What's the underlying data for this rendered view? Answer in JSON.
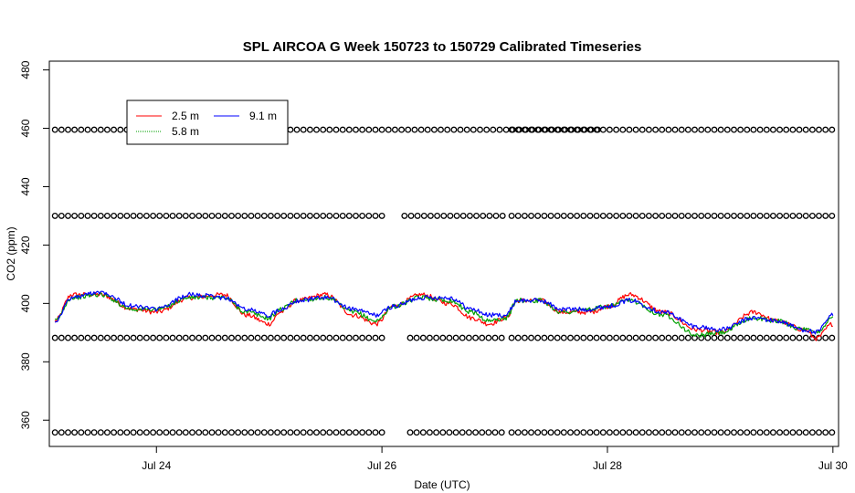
{
  "chart_data": {
    "type": "line",
    "title": "SPL AIRCOA G  Week 150723 to 150729  Calibrated Timeseries",
    "xlabel": "Date (UTC)",
    "ylabel": "CO2 (ppm)",
    "x_unit": "days",
    "xlim": [
      23.05,
      30.05
    ],
    "ylim": [
      351,
      483
    ],
    "x_ticks": [
      {
        "value": 24,
        "label": "Jul 24"
      },
      {
        "value": 26,
        "label": "Jul 26"
      },
      {
        "value": 28,
        "label": "Jul 28"
      },
      {
        "value": 30,
        "label": "Jul 30"
      }
    ],
    "y_ticks": [
      360,
      380,
      400,
      420,
      440,
      460,
      480
    ],
    "legend": {
      "placement": "top-left",
      "entries": [
        "2.5 m",
        "9.1 m",
        "5.8 m"
      ]
    },
    "colors": {
      "2.5 m": "#ff0000",
      "5.8 m": "#00a000",
      "9.1 m": "#0000ff",
      "cal": "#000000"
    },
    "series": [
      {
        "name": "2.5 m",
        "color": "#ff0000",
        "x": [
          23.1,
          23.25,
          23.5,
          23.8,
          24.0,
          24.3,
          24.6,
          24.8,
          25.0,
          25.1,
          25.25,
          25.5,
          25.75,
          25.95,
          26.1,
          26.35,
          26.6,
          26.8,
          26.95,
          27.1,
          27.2,
          27.4,
          27.6,
          27.85,
          28.0,
          28.2,
          28.5,
          28.8,
          29.0,
          29.3,
          29.5,
          29.75,
          29.85,
          30.0
        ],
        "y": [
          394,
          403,
          403,
          398,
          397,
          402,
          403,
          396,
          393,
          397,
          401,
          403,
          396,
          393,
          399,
          403,
          400,
          395,
          393,
          395,
          401,
          401,
          397,
          397,
          399,
          403,
          397,
          391,
          390,
          397,
          394,
          391,
          388,
          393
        ]
      },
      {
        "name": "5.8 m",
        "color": "#00a000",
        "x": [
          23.1,
          23.25,
          23.5,
          23.8,
          24.0,
          24.3,
          24.6,
          24.8,
          25.0,
          25.1,
          25.25,
          25.5,
          25.75,
          25.95,
          26.1,
          26.35,
          26.6,
          26.8,
          26.95,
          27.1,
          27.2,
          27.4,
          27.6,
          27.85,
          28.0,
          28.2,
          28.5,
          28.8,
          29.0,
          29.3,
          29.5,
          29.75,
          29.85,
          30.0
        ],
        "y": [
          394,
          402,
          403,
          398,
          398,
          402,
          402,
          397,
          395,
          398,
          401,
          402,
          397,
          394,
          399,
          402,
          401,
          397,
          394,
          395,
          401,
          401,
          397,
          398,
          399,
          401,
          396,
          389,
          390,
          395,
          394,
          391,
          390,
          395
        ]
      },
      {
        "name": "9.1 m",
        "color": "#0000ff",
        "x": [
          23.1,
          23.25,
          23.5,
          23.8,
          24.0,
          24.3,
          24.6,
          24.8,
          25.0,
          25.1,
          25.25,
          25.5,
          25.75,
          25.95,
          26.1,
          26.35,
          26.6,
          26.8,
          26.95,
          27.1,
          27.2,
          27.4,
          27.6,
          27.85,
          28.0,
          28.2,
          28.5,
          28.8,
          29.0,
          29.3,
          29.5,
          29.75,
          29.85,
          30.0
        ],
        "y": [
          394,
          402,
          404,
          399,
          398,
          403,
          402,
          398,
          396,
          398,
          401,
          402,
          398,
          396,
          399,
          402,
          402,
          398,
          396,
          396,
          401,
          401,
          398,
          398,
          399,
          401,
          397,
          392,
          391,
          395,
          394,
          391,
          390,
          396
        ]
      }
    ],
    "calibration_series": [
      {
        "level": 459.5,
        "segments": [
          [
            23.1,
            27.95
          ],
          [
            27.15,
            30.0
          ]
        ]
      },
      {
        "level": 430.0,
        "segments": [
          [
            23.1,
            26.05
          ],
          [
            26.2,
            27.1
          ],
          [
            27.15,
            30.0
          ]
        ]
      },
      {
        "level": 388.2,
        "segments": [
          [
            23.1,
            26.05
          ],
          [
            26.25,
            27.1
          ],
          [
            27.15,
            30.0
          ]
        ]
      },
      {
        "level": 355.8,
        "segments": [
          [
            23.1,
            26.05
          ],
          [
            26.25,
            27.1
          ],
          [
            27.15,
            30.0
          ]
        ]
      }
    ],
    "grid": false
  }
}
